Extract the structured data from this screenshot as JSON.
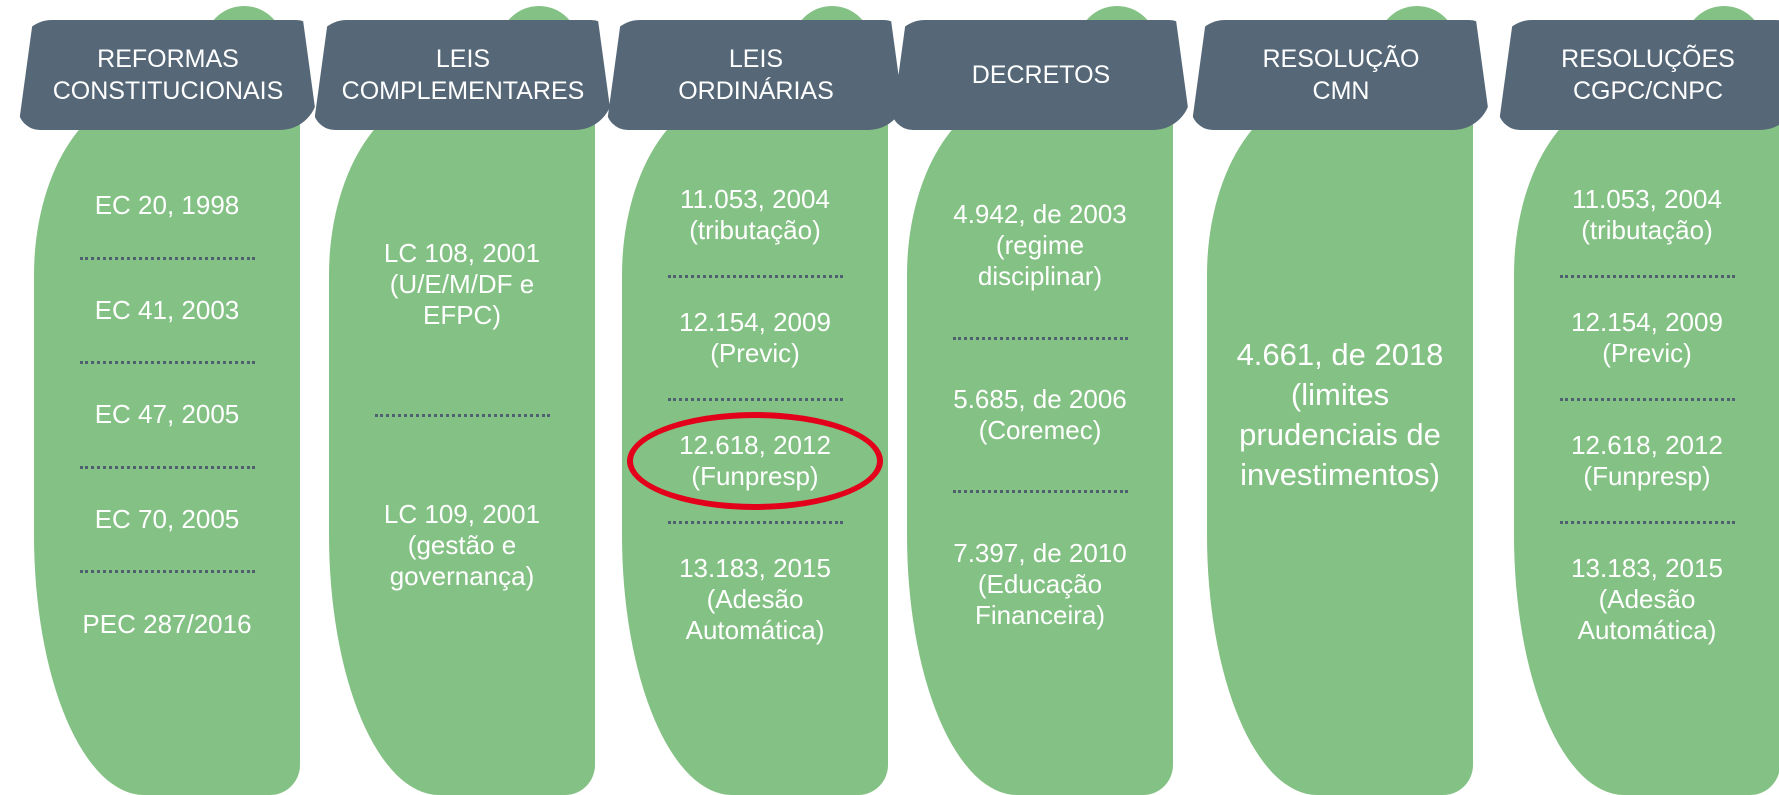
{
  "columns": [
    {
      "title": [
        "REFORMAS",
        "CONSTITUCIONAIS"
      ],
      "items": [
        {
          "lines": [
            "EC 20, 1998"
          ]
        },
        {
          "lines": [
            "EC 41, 2003"
          ]
        },
        {
          "lines": [
            "EC 47, 2005"
          ]
        },
        {
          "lines": [
            "EC 70, 2005"
          ]
        },
        {
          "lines": [
            "PEC 287/2016"
          ]
        }
      ]
    },
    {
      "title": [
        "LEIS",
        "COMPLEMENTARES"
      ],
      "items": [
        {
          "lines": [
            "LC 108, 2001",
            "(U/E/M/DF e",
            "EFPC)"
          ]
        },
        {
          "lines": [
            "LC 109, 2001",
            "(gestão e",
            "governança)"
          ]
        }
      ]
    },
    {
      "title": [
        "LEIS",
        "ORDINÁRIAS"
      ],
      "items": [
        {
          "lines": [
            "11.053, 2004",
            "(tributação)"
          ]
        },
        {
          "lines": [
            "12.154, 2009",
            "(Previc)"
          ]
        },
        {
          "lines": [
            "12.618, 2012",
            "(Funpresp)"
          ],
          "highlighted": true
        },
        {
          "lines": [
            "13.183, 2015",
            "(Adesão",
            "Automática)"
          ]
        }
      ]
    },
    {
      "title": [
        "DECRETOS"
      ],
      "items": [
        {
          "lines": [
            "4.942, de 2003",
            "(regime",
            "disciplinar)"
          ]
        },
        {
          "lines": [
            "5.685, de 2006",
            "(Coremec)"
          ]
        },
        {
          "lines": [
            "7.397, de 2010",
            "(Educação",
            "Financeira)"
          ]
        }
      ]
    },
    {
      "title": [
        "RESOLUÇÃO",
        "CMN"
      ],
      "items": [
        {
          "lines": [
            "4.661, de 2018",
            "(limites",
            "prudenciais de",
            "investimentos)"
          ]
        }
      ]
    },
    {
      "title": [
        "RESOLUÇÕES",
        "CGPC/CNPC"
      ],
      "items": [
        {
          "lines": [
            "11.053, 2004",
            "(tributação)"
          ]
        },
        {
          "lines": [
            "12.154, 2009",
            "(Previc)"
          ]
        },
        {
          "lines": [
            "12.618, 2012",
            "(Funpresp)"
          ]
        },
        {
          "lines": [
            "13.183, 2015",
            "(Adesão",
            "Automática)"
          ]
        }
      ]
    }
  ]
}
